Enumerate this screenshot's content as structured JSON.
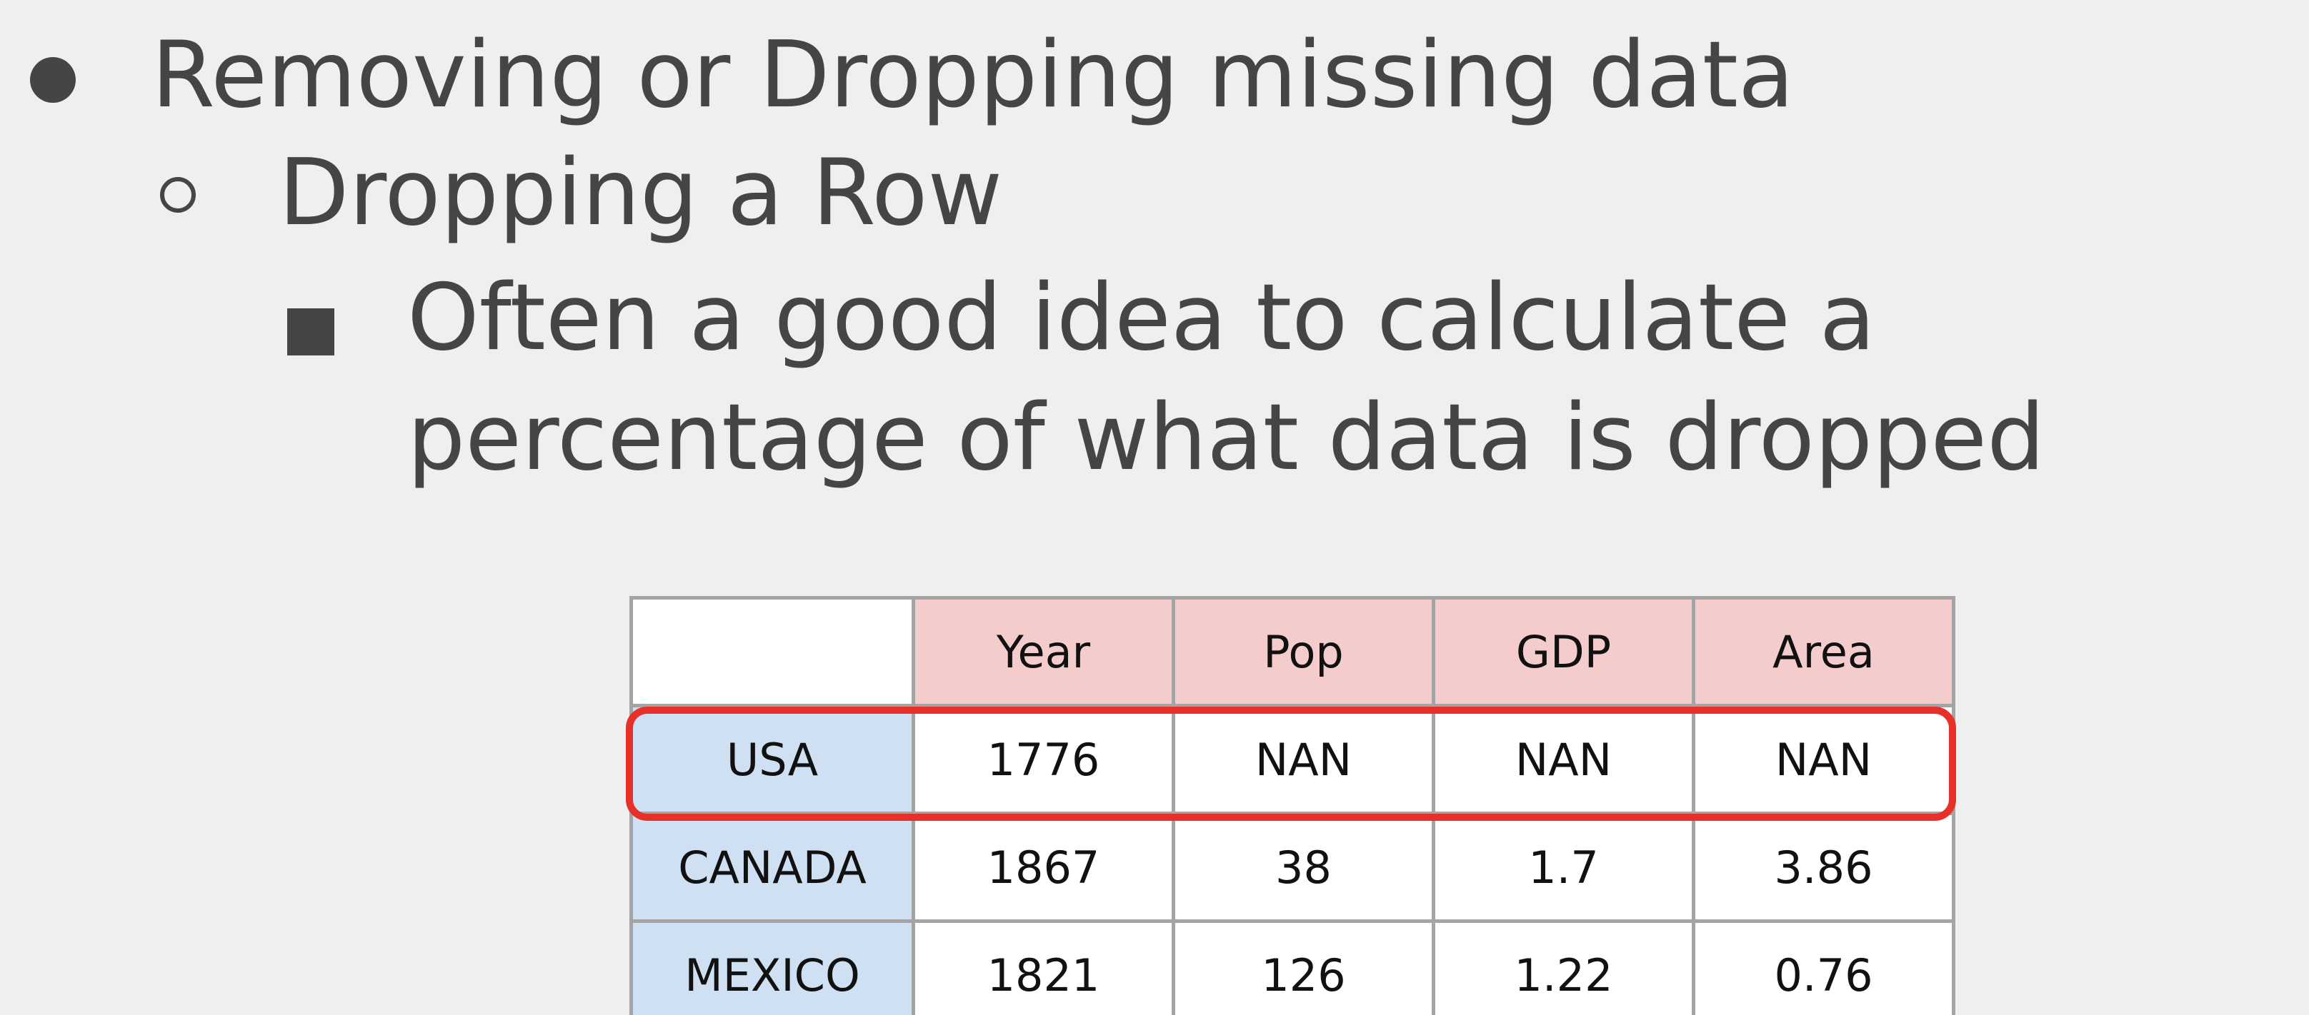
{
  "bullets": {
    "level1": "Removing or Dropping missing data",
    "level2": "Dropping a Row",
    "level3_line1": "Often a good idea to calculate a",
    "level3_line2": "percentage of what data is dropped"
  },
  "table": {
    "columns": [
      "",
      "Year",
      "Pop",
      "GDP",
      "Area"
    ],
    "rows": [
      {
        "label": "USA",
        "cells": [
          "1776",
          "NAN",
          "NAN",
          "NAN"
        ]
      },
      {
        "label": "CANADA",
        "cells": [
          "1867",
          "38",
          "1.7",
          "3.86"
        ]
      },
      {
        "label": "MEXICO",
        "cells": [
          "1821",
          "126",
          "1.22",
          "0.76"
        ]
      }
    ]
  },
  "colors": {
    "header_bg": "#f5cccc",
    "rowlabel_bg": "#cfe0f2",
    "highlight": "#e8302a",
    "text": "#454545"
  }
}
